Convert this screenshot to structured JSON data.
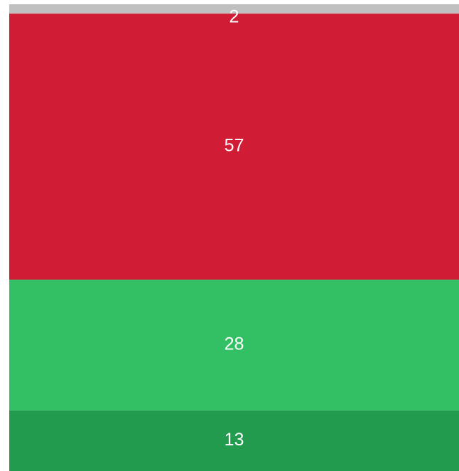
{
  "chart_data": {
    "type": "bar",
    "stacked": true,
    "categories": [
      null
    ],
    "series": [
      {
        "color": "#239b4f",
        "values": [
          13
        ]
      },
      {
        "color": "#33c065",
        "values": [
          28
        ]
      },
      {
        "color": "#d01c35",
        "values": [
          57
        ]
      },
      {
        "color": "#c0c0c0",
        "values": [
          2
        ]
      }
    ]
  }
}
